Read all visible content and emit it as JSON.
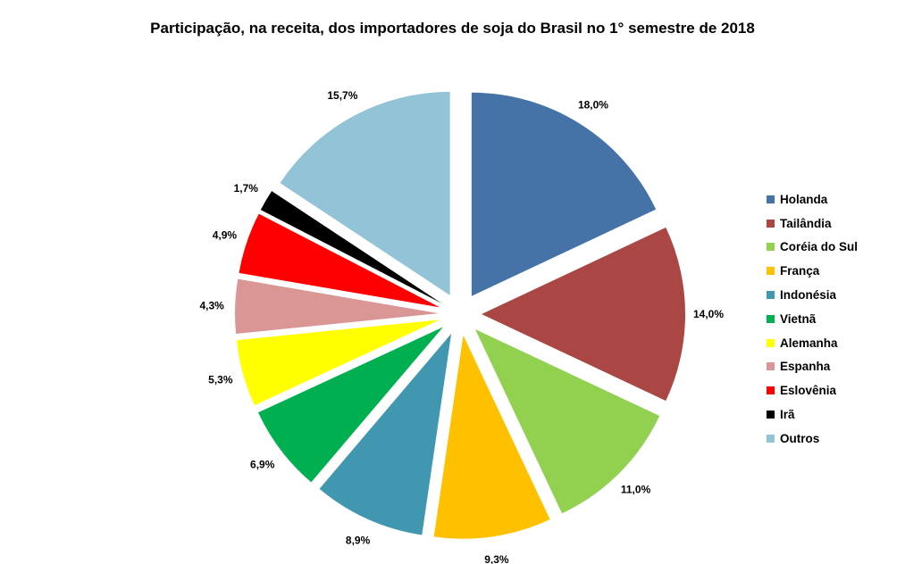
{
  "chart_data": {
    "type": "pie",
    "title": "Participação, na receita, dos importadores de soja do Brasil no 1° semestre de 2018",
    "slices": [
      {
        "label": "Holanda",
        "value": 18.0,
        "display": "18,0%",
        "color": "#4572A7"
      },
      {
        "label": "Tailândia",
        "value": 14.0,
        "display": "14,0%",
        "color": "#AA4643"
      },
      {
        "label": "Coréia do Sul",
        "value": 11.0,
        "display": "11,0%",
        "color": "#92D050"
      },
      {
        "label": "França",
        "value": 9.3,
        "display": "9,3%",
        "color": "#FFC000"
      },
      {
        "label": "Indonésia",
        "value": 8.9,
        "display": "8,9%",
        "color": "#4197B0"
      },
      {
        "label": "Vietnã",
        "value": 6.9,
        "display": "6,9%",
        "color": "#00B050"
      },
      {
        "label": "Alemanha",
        "value": 5.3,
        "display": "5,3%",
        "color": "#FFFF00"
      },
      {
        "label": "Espanha",
        "value": 4.3,
        "display": "4,3%",
        "color": "#D99694"
      },
      {
        "label": "Eslovênia",
        "value": 4.9,
        "display": "4,9%",
        "color": "#FF0000"
      },
      {
        "label": "Irã",
        "value": 1.7,
        "display": "1,7%",
        "color": "#000000"
      },
      {
        "label": "Outros",
        "value": 15.7,
        "display": "15,7%",
        "color": "#93C3D6"
      }
    ],
    "legend_position": "right",
    "exploded": true
  }
}
